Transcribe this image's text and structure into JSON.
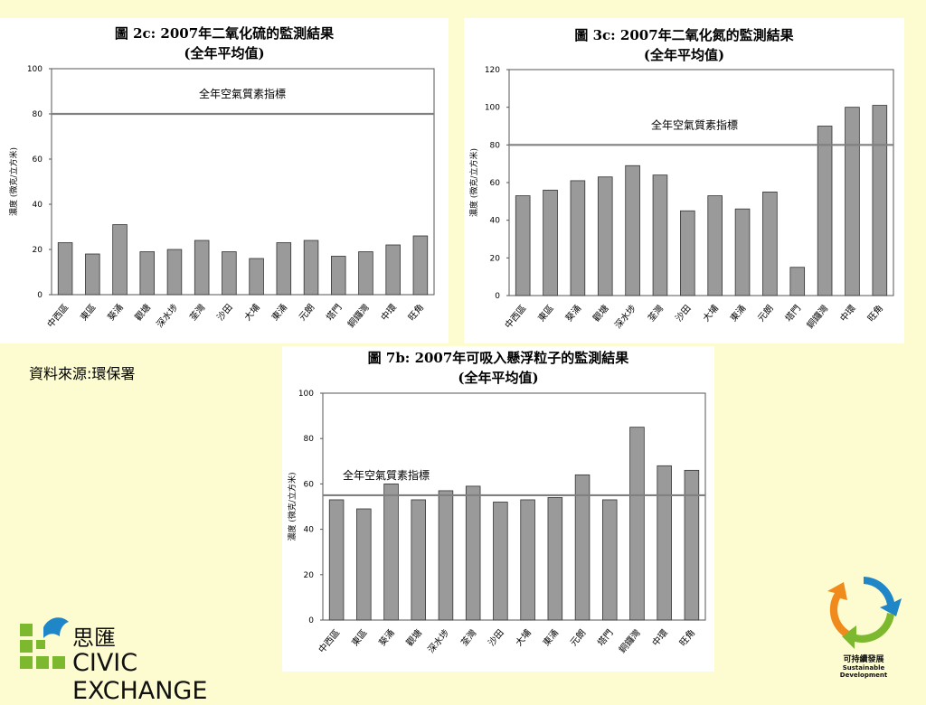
{
  "charts": [
    {
      "type": "bar",
      "title": "圖 2c: 2007年二氧化硫的監測結果",
      "subtitle": "(全年平均值)",
      "ylabel": "濃度 (微克/立方米)",
      "ylim": [
        0,
        100
      ],
      "yticks": [
        0,
        20,
        40,
        60,
        80,
        100
      ],
      "reference": {
        "value": 80,
        "label": "全年空氣質素指標"
      },
      "categories": [
        "中西區",
        "東區",
        "葵涌",
        "觀塘",
        "深水埗",
        "荃灣",
        "沙田",
        "大埔",
        "東涌",
        "元朗",
        "塔門",
        "銅鑼灣",
        "中環",
        "旺角"
      ],
      "values": [
        23,
        18,
        31,
        19,
        20,
        24,
        19,
        16,
        23,
        24,
        17,
        19,
        22,
        26
      ]
    },
    {
      "type": "bar",
      "title": "圖 3c: 2007年二氧化氮的監測結果",
      "subtitle": "(全年平均值)",
      "ylabel": "濃度 (微克/立方米)",
      "ylim": [
        0,
        120
      ],
      "yticks": [
        0,
        20,
        40,
        60,
        80,
        100,
        120
      ],
      "reference": {
        "value": 80,
        "label": "全年空氣質素指標"
      },
      "categories": [
        "中西區",
        "東區",
        "葵涌",
        "觀塘",
        "深水埗",
        "荃灣",
        "沙田",
        "大埔",
        "東涌",
        "元朗",
        "塔門",
        "銅鑼灣",
        "中環",
        "旺角"
      ],
      "values": [
        53,
        56,
        61,
        63,
        69,
        64,
        45,
        53,
        46,
        55,
        15,
        90,
        100,
        101
      ]
    },
    {
      "type": "bar",
      "title": "圖 7b: 2007年可吸入懸浮粒子的監測結果",
      "subtitle": "(全年平均值)",
      "ylabel": "濃度 (微克/立方米)",
      "ylim": [
        0,
        100
      ],
      "yticks": [
        0,
        20,
        40,
        60,
        80,
        100
      ],
      "reference": {
        "value": 55,
        "label": "全年空氣質素指標"
      },
      "categories": [
        "中西區",
        "東區",
        "葵涌",
        "觀塘",
        "深水埗",
        "荃灣",
        "沙田",
        "大埔",
        "東涌",
        "元朗",
        "塔門",
        "銅鑼灣",
        "中環",
        "旺角"
      ],
      "values": [
        53,
        49,
        60,
        53,
        57,
        59,
        52,
        53,
        54,
        64,
        53,
        85,
        68,
        66
      ]
    }
  ],
  "chart_data": [
    {
      "type": "bar",
      "title": "圖 2c: 2007年二氧化硫的監測結果",
      "categories": [
        "中西區",
        "東區",
        "葵涌",
        "觀塘",
        "深水埗",
        "荃灣",
        "沙田",
        "大埔",
        "東涌",
        "元朗",
        "塔門",
        "銅鑼灣",
        "中環",
        "旺角"
      ],
      "values": [
        23,
        18,
        31,
        19,
        20,
        24,
        19,
        16,
        23,
        24,
        17,
        19,
        22,
        26
      ],
      "ylabel": "濃度 (微克/立方米)",
      "ylim": [
        0,
        100
      ],
      "grid": false
    },
    {
      "type": "bar",
      "title": "圖 3c: 2007年二氧化氮的監測結果",
      "categories": [
        "中西區",
        "東區",
        "葵涌",
        "觀塘",
        "深水埗",
        "荃灣",
        "沙田",
        "大埔",
        "東涌",
        "元朗",
        "塔門",
        "銅鑼灣",
        "中環",
        "旺角"
      ],
      "values": [
        53,
        56,
        61,
        63,
        69,
        64,
        45,
        53,
        46,
        55,
        15,
        90,
        100,
        101
      ],
      "ylabel": "濃度 (微克/立方米)",
      "ylim": [
        0,
        120
      ],
      "grid": false
    },
    {
      "type": "bar",
      "title": "圖 7b: 2007年可吸入懸浮粒子的監測結果",
      "categories": [
        "中西區",
        "東區",
        "葵涌",
        "觀塘",
        "深水埗",
        "荃灣",
        "沙田",
        "大埔",
        "東涌",
        "元朗",
        "塔門",
        "銅鑼灣",
        "中環",
        "旺角"
      ],
      "values": [
        53,
        49,
        60,
        53,
        57,
        59,
        52,
        53,
        54,
        64,
        53,
        85,
        68,
        66
      ],
      "ylabel": "濃度 (微克/立方米)",
      "ylim": [
        0,
        100
      ],
      "grid": false
    }
  ],
  "source": "資料來源:環保署",
  "logo_left": {
    "chinese": "思匯",
    "english": "CIVIC EXCHANGE"
  },
  "logo_right": {
    "chinese": "可持續發展",
    "english": "Sustainable Development"
  },
  "colors": {
    "background": "#fdfbd0",
    "bar": "#9a9a9a",
    "reference_line": "#808080",
    "logo_blue": "#1f86c8",
    "logo_green": "#7cb92e",
    "logo_orange": "#f08a1c"
  }
}
